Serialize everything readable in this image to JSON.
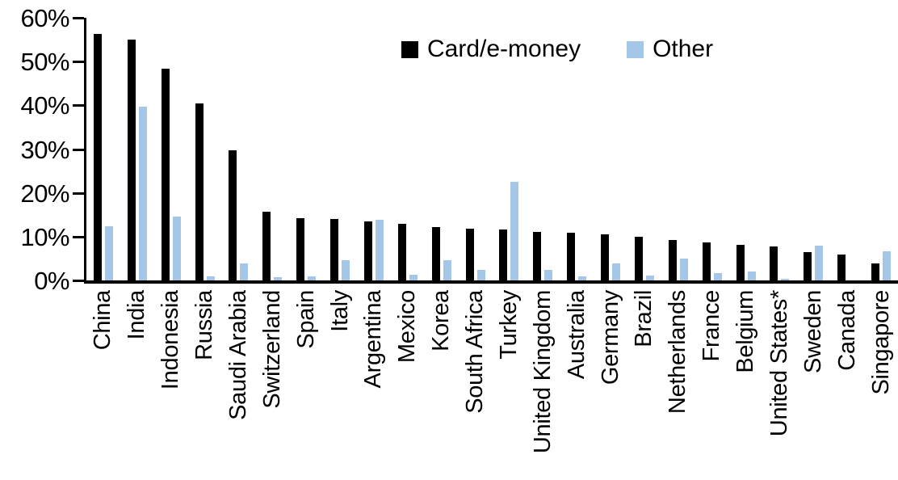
{
  "legend": {
    "card_label": "Card/e-money",
    "other_label": "Other"
  },
  "colors": {
    "card": "#000000",
    "other": "#A4C7E8",
    "axis": "#000000",
    "background": "#FFFFFF"
  },
  "y_axis": {
    "tick_labels": [
      "60%",
      "50%",
      "40%",
      "30%",
      "20%",
      "10%",
      "0%"
    ]
  },
  "chart_data": {
    "type": "bar",
    "categories": [
      "China",
      "India",
      "Indonesia",
      "Russia",
      "Saudi Arabia",
      "Switzerland",
      "Spain",
      "Italy",
      "Argentina",
      "Mexico",
      "Korea",
      "South Africa",
      "Turkey",
      "United Kingdom",
      "Australia",
      "Germany",
      "Brazil",
      "Netherlands",
      "France",
      "Belgium",
      "United States*",
      "Sweden",
      "Canada",
      "Singapore"
    ],
    "series": [
      {
        "name": "Card/e-money",
        "color": "#000000",
        "values": [
          56.3,
          55.0,
          48.3,
          40.5,
          29.8,
          15.7,
          14.2,
          14.1,
          13.4,
          12.9,
          12.2,
          11.8,
          11.6,
          11.0,
          10.8,
          10.5,
          9.9,
          9.2,
          8.6,
          8.1,
          7.8,
          6.5,
          5.9,
          3.9
        ]
      },
      {
        "name": "Other",
        "color": "#A4C7E8",
        "values": [
          12.3,
          39.7,
          14.6,
          1.0,
          3.9,
          0.8,
          1.0,
          4.6,
          13.8,
          1.3,
          4.6,
          2.4,
          22.5,
          2.4,
          0.9,
          3.9,
          1.1,
          4.9,
          1.6,
          2.0,
          0.3,
          8.0,
          0.0,
          6.6
        ]
      }
    ],
    "ylim": [
      0,
      60
    ],
    "y_tick_step": 10,
    "y_tick_format": "percent",
    "grid": false,
    "legend_position": "top-center",
    "xlabel": "",
    "ylabel": ""
  }
}
